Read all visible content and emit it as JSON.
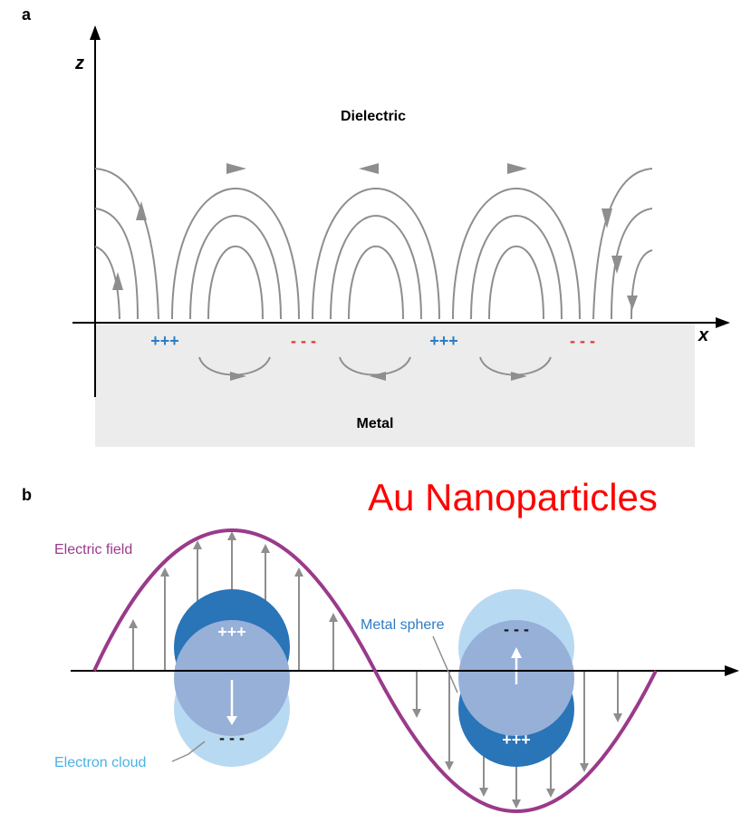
{
  "panel_a": {
    "label": "a",
    "z_axis": "z",
    "x_axis": "x",
    "dielectric": "Dielectric",
    "metal": "Metal",
    "charges": [
      "+++",
      "- - -",
      "+++",
      "- - -"
    ],
    "colors": {
      "positive": "#2e7cc4",
      "negative": "#e2362b",
      "field_lines": "#8e8e8e",
      "metal_fill": "#ececec"
    }
  },
  "panel_b": {
    "label": "b",
    "title": "Au Nanoparticles",
    "electric_field": "Electric field",
    "metal_sphere": "Metal sphere",
    "electron_cloud": "Electron cloud",
    "sphere_left": {
      "top_charge": "+++",
      "bottom_charge": "- - -"
    },
    "sphere_right": {
      "top_charge": "- - -",
      "bottom_charge": "+++"
    },
    "colors": {
      "title": "#ff0000",
      "wave": "#9a3a8a",
      "sphere_dark": "#2a74b8",
      "sphere_light": "#b8d9f2",
      "overlap": "#97b0d8",
      "label_blue": "#2e7cc4",
      "label_light_blue": "#4ab3e3"
    }
  }
}
